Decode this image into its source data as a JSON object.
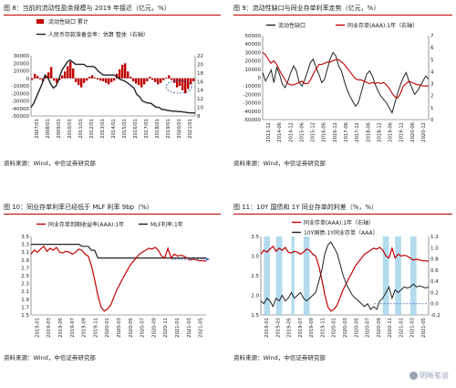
{
  "panels": [
    {
      "title": "图 8：当前的流动性盈余规模与 2019 年接近（亿元，%）",
      "source": "资料来源：Wind，中信证券研究部",
      "chart_data": {
        "type": "bar",
        "legend": [
          "流动性缺口 累计",
          "人民币存款准备金率：估算 整体（右轴）"
        ],
        "y_left_ticks": [
          "30000",
          "20000",
          "10000",
          "0",
          "-10000",
          "-20000",
          "-30000",
          "-40000",
          "-50000"
        ],
        "y_right_ticks": [
          "22",
          "20",
          "18",
          "16",
          "14",
          "12",
          "10",
          "8"
        ],
        "ylim": [
          -50000,
          30000
        ],
        "y2lim": [
          8,
          22
        ],
        "x_tick_labels": [
          "2007/01",
          "2008/01",
          "2009/01",
          "2010/01",
          "2011/01",
          "2012/01",
          "2013/01",
          "2014/01",
          "2015/01",
          "2016/01",
          "2017/01",
          "2018/01",
          "2019/01",
          "2020/01",
          "2021/01"
        ],
        "bar_series": {
          "name": "流动性缺口 累计",
          "color": "#c00000",
          "values": [
            -2000,
            6000,
            3000,
            -1500,
            -4000,
            2500,
            8000,
            15000,
            -3000,
            -6000,
            -2500,
            4000,
            9000,
            16000,
            22000,
            13000,
            -5000,
            -9000,
            -12000,
            -6000,
            -3000,
            2000,
            4000,
            1000,
            -1500,
            -3000,
            -4000,
            -6000,
            -8000,
            -5000,
            -3000,
            6000,
            12000,
            18000,
            20000,
            9000,
            2000,
            -4000,
            -7000,
            -9000,
            -12000,
            -8000,
            -4000,
            2000,
            -2000,
            -5000,
            -8000,
            -6000,
            -2500,
            1000,
            4000,
            -2000,
            -6000,
            -12000,
            -10000,
            -16000,
            -20000,
            -14000,
            -8000,
            -4000
          ]
        },
        "line_series": {
          "name": "人民币存款准备金率：估算 整体（右轴）",
          "color": "#222222",
          "values": [
            10,
            11,
            12.5,
            14,
            15.5,
            17.5,
            17.0,
            15.5,
            14.5,
            15.0,
            16.5,
            18.5,
            19.5,
            20.5,
            21.0,
            20.5,
            20.0,
            20.0,
            20.0,
            20.0,
            19.5,
            19.5,
            19.5,
            19.3,
            18.5,
            18.0,
            17.5,
            17.5,
            17.5,
            17.5,
            17.5,
            17.0,
            16.5,
            16.3,
            16.0,
            15.5,
            15.0,
            14.5,
            13.0,
            12.5,
            11.5,
            11.2,
            11.0,
            11.0,
            10.5,
            10.0,
            10.0,
            9.5,
            9.5,
            9.3,
            9.2,
            9.1,
            9.1,
            9.0,
            9.0,
            8.9,
            8.8,
            8.7,
            8.7,
            8.7
          ]
        }
      }
    },
    {
      "title": "图 9：流动性缺口与同业存单利率走势（亿元，%）",
      "source": "资料来源：Wind，中信证券研究部",
      "chart_data": {
        "type": "line",
        "legend": [
          "流动性缺口",
          "同业存单(AAA):1年（右轴）"
        ],
        "y_left_ticks": [
          "50000",
          "40000",
          "30000",
          "20000",
          "10000",
          "0",
          "-10000",
          "-20000",
          "-30000",
          "-40000",
          "-50000"
        ],
        "y_right_ticks": [
          "7",
          "6",
          "5",
          "4",
          "3",
          "2",
          "1",
          "0"
        ],
        "ylim": [
          -50000,
          50000
        ],
        "y2lim": [
          0,
          7
        ],
        "x_tick_labels": [
          "2013-12",
          "2014-06",
          "2014-12",
          "2015-06",
          "2015-12",
          "2016-06",
          "2016-12",
          "2017-06",
          "2017-12",
          "2018-06",
          "2018-12",
          "2019-06",
          "2019-12",
          "2020-06",
          "2020-12"
        ],
        "left_series": {
          "name": "流动性缺口",
          "color": "#222222",
          "values": [
            6000,
            -4000,
            2000,
            9000,
            -6000,
            12000,
            4000,
            -8000,
            -12000,
            -4000,
            6000,
            14000,
            8000,
            -6000,
            -10000,
            -2000,
            8000,
            18000,
            22000,
            12000,
            4000,
            -6000,
            -2000,
            10000,
            22000,
            30000,
            26000,
            14000,
            8000,
            -4000,
            -14000,
            -22000,
            -28000,
            -34000,
            -30000,
            -18000,
            -6000,
            4000,
            8000,
            2000,
            -8000,
            -16000,
            -22000,
            -26000,
            -30000,
            -36000,
            -42000,
            -30000,
            -18000,
            -8000,
            0,
            6000,
            -4000,
            -12000,
            -20000,
            -16000,
            -10000,
            -4000,
            2000,
            -2000
          ]
        },
        "right_series": {
          "name": "同业存单(AAA):1年（右轴）",
          "color": "#c00000",
          "values": [
            5.6,
            5.4,
            5.0,
            4.7,
            4.9,
            4.6,
            4.1,
            3.7,
            3.3,
            3.0,
            2.9,
            2.9,
            3.0,
            3.1,
            3.2,
            3.0,
            3.0,
            3.3,
            3.8,
            4.2,
            4.6,
            4.6,
            4.7,
            4.8,
            4.8,
            4.9,
            5.0,
            5.0,
            4.8,
            4.6,
            4.3,
            4.0,
            3.7,
            3.4,
            3.3,
            3.3,
            3.2,
            3.1,
            3.0,
            3.1,
            3.0,
            3.1,
            3.0,
            3.1,
            2.9,
            2.6,
            2.2,
            1.9,
            1.8,
            2.2,
            2.8,
            3.0,
            3.2,
            3.1,
            3.0,
            2.9,
            2.9,
            2.8,
            2.8,
            2.8
          ]
        }
      }
    },
    {
      "title": "图 10：同业存单利率已经低于 MLF 利率 9bp（%）",
      "source": "资料来源：Wind，中信证券研究部",
      "chart_data": {
        "type": "line",
        "legend": [
          "同业存单到期收益率(AAA):1年",
          "MLF利率:1年"
        ],
        "y_left_ticks": [
          "3.5",
          "3.3",
          "3.1",
          "2.9",
          "2.7",
          "2.5",
          "2.3",
          "2.1",
          "1.9",
          "1.7",
          "1.5"
        ],
        "ylim": [
          1.5,
          3.5
        ],
        "x_tick_labels": [
          "2019-01",
          "2019-03",
          "2019-05",
          "2019-07",
          "2019-09",
          "2019-11",
          "2020-01",
          "2020-03",
          "2020-05",
          "2020-07",
          "2020-09",
          "2020-11",
          "2021-01",
          "2021-03",
          "2021-05"
        ],
        "series": [
          {
            "name": "同业存单到期收益率(AAA):1年",
            "color": "#c00000",
            "values": [
              3.05,
              3.15,
              3.1,
              3.18,
              3.25,
              3.12,
              3.2,
              3.15,
              3.22,
              3.1,
              3.08,
              3.12,
              3.1,
              3.05,
              3.1,
              3.18,
              3.15,
              3.05,
              3.0,
              2.75,
              2.4,
              2.0,
              1.7,
              1.6,
              1.65,
              1.75,
              1.95,
              2.15,
              2.3,
              2.45,
              2.6,
              2.75,
              2.85,
              2.95,
              3.05,
              3.1,
              3.15,
              3.2,
              3.18,
              3.22,
              3.15,
              3.0,
              2.95,
              3.2,
              2.95,
              3.05,
              3.0,
              3.02,
              3.0,
              2.95,
              2.9,
              2.92,
              2.9,
              2.88,
              2.88,
              2.87
            ]
          },
          {
            "name": "MLF利率:1年",
            "color": "#222222",
            "values": [
              3.3,
              3.3,
              3.3,
              3.3,
              3.3,
              3.3,
              3.3,
              3.3,
              3.3,
              3.3,
              3.3,
              3.3,
              3.3,
              3.3,
              3.3,
              3.3,
              3.25,
              3.25,
              3.25,
              3.15,
              3.15,
              2.95,
              2.95,
              2.95,
              2.95,
              2.95,
              2.95,
              2.95,
              2.95,
              2.95,
              2.95,
              2.95,
              2.95,
              2.95,
              2.95,
              2.95,
              2.95,
              2.95,
              2.95,
              2.95,
              2.95,
              2.95,
              2.95,
              2.95,
              2.95,
              2.95,
              2.95,
              2.95,
              2.95,
              2.95,
              2.95,
              2.95,
              2.95,
              2.95,
              2.95,
              2.95
            ]
          }
        ]
      }
    },
    {
      "title": "图 11：10Y 国债和 1Y 同业存单的利差（%，%）",
      "source": "资料来源：Wind，中信证券研究部",
      "chart_data": {
        "type": "line",
        "legend": [
          "同业存单(AAA):1年（右轴）",
          "10Y国债-1Y同业存单（AAA）"
        ],
        "y_left_ticks": [
          "3.5",
          "3.0",
          "2.5",
          "2.0",
          "1.5"
        ],
        "y_right_ticks": [
          "1.2",
          "1.0",
          "0.8",
          "0.6",
          "0.4",
          "0.2",
          "0.0",
          "-0.2"
        ],
        "ylim": [
          1.5,
          3.5
        ],
        "y2lim": [
          -0.2,
          1.2
        ],
        "x_tick_labels": [
          "2019-01",
          "2019-03",
          "2019-05",
          "2019-07",
          "2019-09",
          "2019-11",
          "2020-01",
          "2020-03",
          "2020-05",
          "2020-07",
          "2020-09",
          "2020-11",
          "2021-01",
          "2021-03",
          "2021-05"
        ],
        "shaded_periods": [
          [
            1,
            3
          ],
          [
            5,
            7
          ],
          [
            10,
            11
          ],
          [
            14,
            16
          ],
          [
            40,
            42
          ],
          [
            44,
            46
          ],
          [
            49,
            51
          ]
        ],
        "series": [
          {
            "name": "同业存单(AAA):1年（右轴）",
            "color": "#c00000",
            "values": [
              3.05,
              3.15,
              3.1,
              3.18,
              3.25,
              3.12,
              3.2,
              3.15,
              3.22,
              3.1,
              3.08,
              3.12,
              3.1,
              3.05,
              3.1,
              3.18,
              3.15,
              3.05,
              3.0,
              2.75,
              2.4,
              2.0,
              1.7,
              1.6,
              1.65,
              1.75,
              1.95,
              2.15,
              2.3,
              2.45,
              2.6,
              2.75,
              2.85,
              2.95,
              3.05,
              3.1,
              3.15,
              3.2,
              3.18,
              3.22,
              3.15,
              3.0,
              2.95,
              3.2,
              2.95,
              3.05,
              3.0,
              3.02,
              3.0,
              2.95,
              2.9,
              2.92,
              2.9,
              2.88,
              2.88,
              2.87
            ]
          },
          {
            "name": "10Y国债-1Y同业存单（AAA）",
            "color": "#222222",
            "values": [
              0.05,
              0.0,
              0.1,
              0.05,
              -0.05,
              0.1,
              0.05,
              0.15,
              0.05,
              0.1,
              0.2,
              0.1,
              0.15,
              0.2,
              0.1,
              0.05,
              0.1,
              0.15,
              0.2,
              0.4,
              0.6,
              0.9,
              1.05,
              1.1,
              1.0,
              0.9,
              0.7,
              0.5,
              0.35,
              0.25,
              0.15,
              0.1,
              0.05,
              0.0,
              -0.05,
              0.0,
              -0.1,
              -0.05,
              -0.1,
              0.05,
              0.1,
              0.2,
              0.3,
              0.1,
              0.25,
              0.2,
              0.25,
              0.3,
              0.28,
              0.3,
              0.35,
              0.3,
              0.32,
              0.3,
              0.28,
              0.3
            ]
          }
        ]
      }
    }
  ],
  "watermark": "明晰笔谈"
}
